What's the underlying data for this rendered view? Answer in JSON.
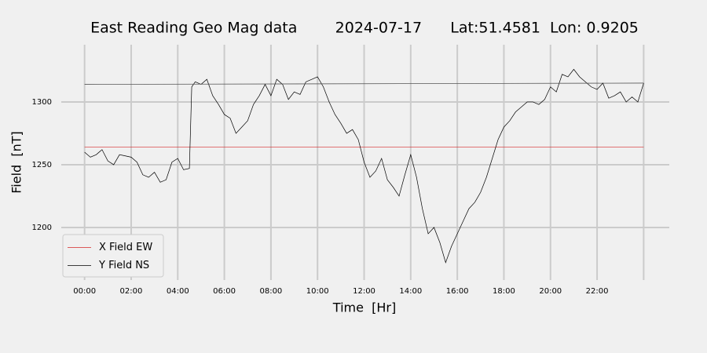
{
  "chart_data": {
    "type": "line",
    "title": "East Reading Geo Mag data        2024-07-17      Lat:51.4581  Lon: 0.9205",
    "x_label": "Time  [Hr]",
    "y_label": "Field  [nT]",
    "xlim": [
      -1.0,
      25.1
    ],
    "ylim": [
      1158.1,
      1345.6
    ],
    "xticks": [
      {
        "value": 0,
        "label": "00:00"
      },
      {
        "value": 2,
        "label": "02:00"
      },
      {
        "value": 4,
        "label": "04:00"
      },
      {
        "value": 6,
        "label": "06:00"
      },
      {
        "value": 8,
        "label": "08:00"
      },
      {
        "value": 10,
        "label": "10:00"
      },
      {
        "value": 12,
        "label": "12:00"
      },
      {
        "value": 14,
        "label": "14:00"
      },
      {
        "value": 16,
        "label": "16:00"
      },
      {
        "value": 18,
        "label": "18:00"
      },
      {
        "value": 20,
        "label": "20:00"
      },
      {
        "value": 22,
        "label": "22:00"
      },
      {
        "value": 24,
        "label": null
      }
    ],
    "yticks": [
      1200,
      1250,
      1300
    ],
    "grid": true,
    "legend": "lower left",
    "series": [
      {
        "name": "X Field EW",
        "color": "#d62728",
        "x": [
          0,
          24
        ],
        "values": [
          1264,
          1264
        ]
      },
      {
        "name": "Y Field NS",
        "color": "#000000",
        "x": [
          0,
          0.25,
          0.5,
          0.75,
          1,
          1.25,
          1.5,
          1.75,
          2,
          2.25,
          2.5,
          2.75,
          3,
          3.25,
          3.5,
          3.75,
          4,
          4.25,
          4.5,
          4.6,
          4.75,
          5,
          5.25,
          5.5,
          5.75,
          6,
          6.25,
          6.5,
          6.75,
          7,
          7.25,
          7.5,
          7.75,
          8,
          8.25,
          8.5,
          8.75,
          9,
          9.25,
          9.5,
          9.75,
          10,
          10.25,
          10.5,
          10.75,
          11,
          11.25,
          11.5,
          11.75,
          12,
          12.25,
          12.5,
          12.75,
          13,
          13.25,
          13.5,
          13.75,
          14,
          14.25,
          14.5,
          14.75,
          15,
          15.25,
          15.5,
          15.75,
          16,
          16.25,
          16.5,
          16.75,
          17,
          17.25,
          17.5,
          17.75,
          18,
          18.25,
          18.5,
          18.75,
          19,
          19.25,
          19.5,
          19.75,
          20,
          20.25,
          20.5,
          20.75,
          21,
          21.25,
          21.5,
          21.75,
          22,
          22.25,
          22.5,
          22.75,
          23,
          23.25,
          23.5,
          23.75,
          24
        ],
        "values": [
          1260,
          1256,
          1258,
          1262,
          1253,
          1250,
          1258,
          1257,
          1256,
          1252,
          1242,
          1240,
          1244,
          1236,
          1238,
          1252,
          1255,
          1246,
          1247,
          1312,
          1316,
          1314,
          1318,
          1305,
          1298,
          1290,
          1287,
          1275,
          1280,
          1285,
          1298,
          1305,
          1314,
          1305,
          1318,
          1314,
          1302,
          1308,
          1306,
          1316,
          1318,
          1320,
          1312,
          1300,
          1290,
          1283,
          1275,
          1278,
          1270,
          1252,
          1240,
          1245,
          1255,
          1238,
          1232,
          1225,
          1242,
          1258,
          1240,
          1215,
          1195,
          1200,
          1188,
          1172,
          1185,
          1195,
          1205,
          1215,
          1220,
          1228,
          1240,
          1255,
          1270,
          1280,
          1285,
          1292,
          1296,
          1300,
          1300,
          1298,
          1302,
          1312,
          1308,
          1322,
          1320,
          1326,
          1320,
          1316,
          1312,
          1310,
          1315,
          1303,
          1305,
          1308,
          1300,
          1304,
          1300,
          1315
        ]
      },
      {
        "color": "#555555",
        "x": [
          0,
          24
        ],
        "values": [
          1314,
          1315
        ]
      }
    ]
  }
}
